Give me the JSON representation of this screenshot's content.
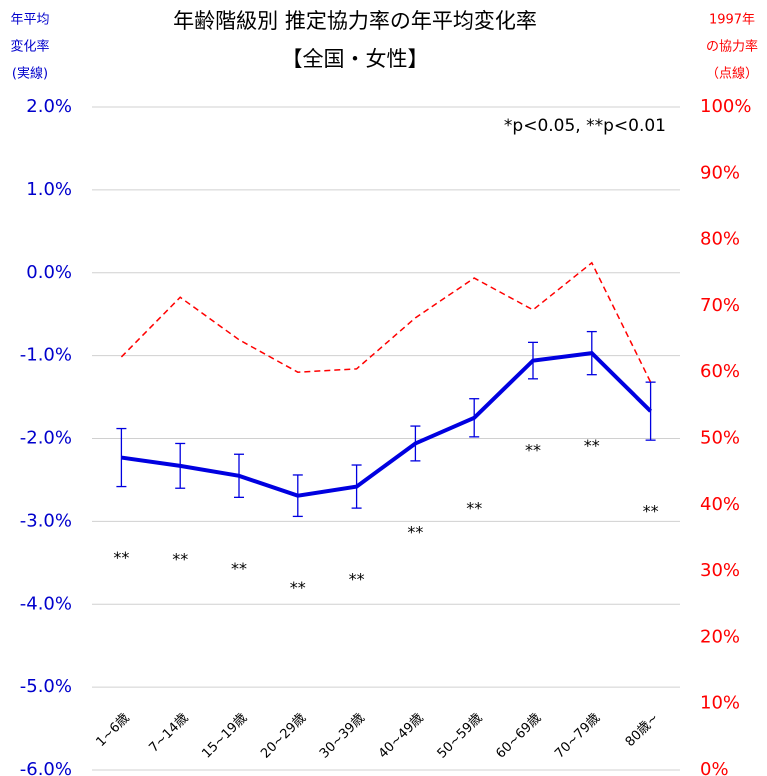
{
  "chart_data": {
    "type": "line",
    "title": "年齢階級別  推定協力率の年平均変化率",
    "subtitle": "【全国・女性】",
    "y_label": [
      "年平均",
      "変化率",
      "(実線)"
    ],
    "y2_label": [
      "1997年",
      "の協力率",
      "（点線）"
    ],
    "note": "*p<0.05, **p<0.01",
    "categories": [
      "1~6歳",
      "7~14歳",
      "15~19歳",
      "20~29歳",
      "30~39歳",
      "40~49歳",
      "50~59歳",
      "60~69歳",
      "70~79歳",
      "80歳~"
    ],
    "series": [
      {
        "color": "#0000e0",
        "values": [
          -2.23,
          -2.33,
          -2.45,
          -2.69,
          -2.58,
          -2.06,
          -1.75,
          -1.06,
          -0.97,
          -1.67
        ],
        "errors": [
          0.35,
          0.27,
          0.26,
          0.25,
          0.26,
          0.21,
          0.23,
          0.22,
          0.26,
          0.35
        ],
        "significance": [
          "**",
          "**",
          "**",
          "**",
          "**",
          "**",
          "**",
          "**",
          "**",
          "**"
        ]
      },
      {
        "color": "#ff0000",
        "axis": "y2",
        "dashed": true,
        "values": [
          62.3,
          71.3,
          64.9,
          60.0,
          60.5,
          68.2,
          74.2,
          69.4,
          76.5,
          58.5
        ]
      }
    ],
    "ylim": [
      -6,
      2
    ],
    "yticks": [
      {
        "value": -6,
        "label": "-6.0%"
      },
      {
        "value": -5,
        "label": "-5.0%"
      },
      {
        "value": -4,
        "label": "-4.0%"
      },
      {
        "value": -3,
        "label": "-3.0%"
      },
      {
        "value": -2,
        "label": "-2.0%"
      },
      {
        "value": -1,
        "label": "-1.0%"
      },
      {
        "value": 0,
        "label": "0.0%"
      },
      {
        "value": 1,
        "label": "1.0%"
      },
      {
        "value": 2,
        "label": "2.0%"
      }
    ],
    "y2lim": [
      0,
      100
    ],
    "y2ticks": [
      {
        "value": 0,
        "label": "0%"
      },
      {
        "value": 10,
        "label": "10%"
      },
      {
        "value": 20,
        "label": "20%"
      },
      {
        "value": 30,
        "label": "30%"
      },
      {
        "value": 40,
        "label": "40%"
      },
      {
        "value": 50,
        "label": "50%"
      },
      {
        "value": 60,
        "label": "60%"
      },
      {
        "value": 70,
        "label": "70%"
      },
      {
        "value": 80,
        "label": "80%"
      },
      {
        "value": 90,
        "label": "90%"
      },
      {
        "value": 100,
        "label": "100%"
      }
    ],
    "grid": true
  }
}
